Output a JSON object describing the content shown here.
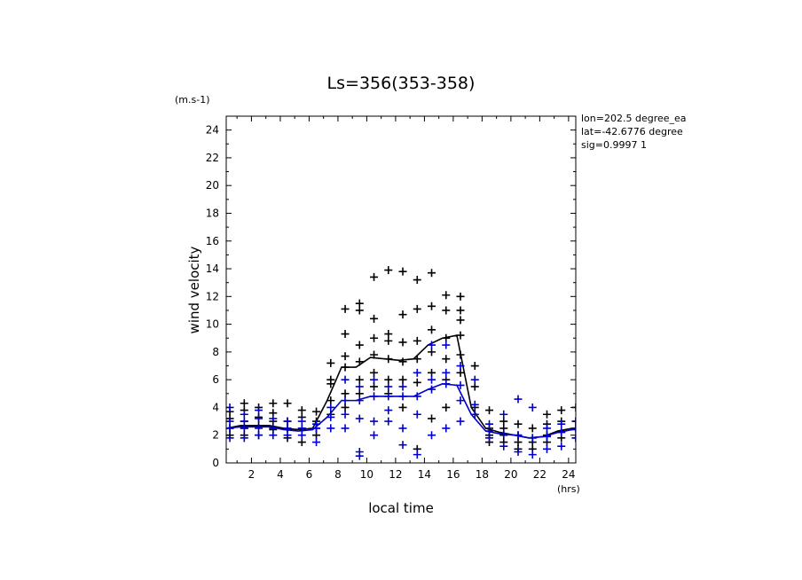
{
  "chart_data": {
    "type": "scatter",
    "title": "Ls=356(353-358)",
    "xlabel": "local time",
    "ylabel": "wind velocity",
    "x_unit": "(hrs)",
    "y_unit": "(m.s-1)",
    "xlim": [
      0.25,
      24.5
    ],
    "ylim": [
      0,
      25
    ],
    "x_ticks": [
      2,
      4,
      6,
      8,
      10,
      12,
      14,
      16,
      18,
      20,
      22,
      24
    ],
    "y_ticks": [
      0,
      2,
      4,
      6,
      8,
      10,
      12,
      14,
      16,
      18,
      20,
      22,
      24
    ],
    "info_lines": [
      "lon=202.5 degree_ea",
      "lat=-42.6776 degree",
      "sig=0.9997 1"
    ],
    "colors": {
      "black_series": "#000000",
      "blue_series": "#0000cc",
      "axis": "#000000"
    },
    "series": [
      {
        "color": "black",
        "mean_x": [
          0.25,
          1.25,
          2.25,
          3.25,
          4.25,
          5.25,
          6.25,
          7.25,
          8.25,
          9.25,
          10.25,
          11.25,
          12.25,
          13.25,
          14.25,
          15.25,
          16.25,
          17.25,
          18.25,
          19.25,
          20.25,
          21.25,
          22.25,
          23.25,
          24.25
        ],
        "mean_y": [
          2.5,
          2.7,
          2.7,
          2.7,
          2.5,
          2.4,
          2.5,
          4.5,
          6.9,
          6.9,
          7.6,
          7.5,
          7.4,
          7.5,
          8.5,
          9.0,
          9.2,
          4.0,
          2.5,
          2.2,
          2.0,
          1.8,
          1.9,
          2.3,
          2.5
        ],
        "points": [
          [
            0.5,
            2.5
          ],
          [
            0.5,
            3.2
          ],
          [
            0.5,
            2.0
          ],
          [
            0.5,
            3.7
          ],
          [
            1.5,
            2.5
          ],
          [
            1.5,
            3.0
          ],
          [
            1.5,
            3.8
          ],
          [
            1.5,
            4.3
          ],
          [
            1.5,
            2.0
          ],
          [
            2.5,
            2.7
          ],
          [
            2.5,
            3.3
          ],
          [
            2.5,
            4.0
          ],
          [
            2.5,
            2.0
          ],
          [
            3.5,
            3.0
          ],
          [
            3.5,
            3.6
          ],
          [
            3.5,
            4.3
          ],
          [
            3.5,
            2.4
          ],
          [
            4.5,
            2.5
          ],
          [
            4.5,
            3.0
          ],
          [
            4.5,
            4.3
          ],
          [
            4.5,
            1.8
          ],
          [
            5.5,
            2.5
          ],
          [
            5.5,
            3.3
          ],
          [
            5.5,
            3.8
          ],
          [
            5.5,
            1.5
          ],
          [
            6.5,
            2.5
          ],
          [
            6.5,
            3.0
          ],
          [
            6.5,
            3.7
          ],
          [
            6.5,
            2.0
          ],
          [
            7.5,
            4.5
          ],
          [
            7.5,
            5.7
          ],
          [
            7.5,
            7.2
          ],
          [
            7.5,
            6.0
          ],
          [
            7.5,
            3.5
          ],
          [
            8.5,
            6.9
          ],
          [
            8.5,
            9.3
          ],
          [
            8.5,
            11.1
          ],
          [
            8.5,
            7.7
          ],
          [
            8.5,
            5.0
          ],
          [
            8.5,
            4.0
          ],
          [
            9.5,
            11.5
          ],
          [
            9.5,
            11.0
          ],
          [
            9.5,
            8.5
          ],
          [
            9.5,
            7.3
          ],
          [
            9.5,
            6.0
          ],
          [
            9.5,
            5.0
          ],
          [
            10.5,
            13.4
          ],
          [
            10.5,
            10.4
          ],
          [
            10.5,
            9.0
          ],
          [
            10.5,
            7.8
          ],
          [
            10.5,
            6.5
          ],
          [
            10.5,
            5.5
          ],
          [
            11.5,
            13.9
          ],
          [
            11.5,
            9.3
          ],
          [
            11.5,
            8.8
          ],
          [
            11.5,
            7.5
          ],
          [
            11.5,
            6.0
          ],
          [
            11.5,
            5.0
          ],
          [
            12.5,
            13.8
          ],
          [
            12.5,
            10.7
          ],
          [
            12.5,
            8.7
          ],
          [
            12.5,
            7.3
          ],
          [
            12.5,
            6.0
          ],
          [
            12.5,
            4.0
          ],
          [
            13.5,
            13.2
          ],
          [
            13.5,
            11.1
          ],
          [
            13.5,
            8.8
          ],
          [
            13.5,
            7.5
          ],
          [
            13.5,
            5.8
          ],
          [
            13.5,
            1.0
          ],
          [
            14.5,
            13.7
          ],
          [
            14.5,
            11.3
          ],
          [
            14.5,
            9.6
          ],
          [
            14.5,
            8.0
          ],
          [
            14.5,
            6.5
          ],
          [
            14.5,
            3.2
          ],
          [
            15.5,
            12.1
          ],
          [
            15.5,
            11.0
          ],
          [
            15.5,
            9.0
          ],
          [
            15.5,
            7.5
          ],
          [
            15.5,
            6.0
          ],
          [
            15.5,
            4.0
          ],
          [
            16.5,
            12.0
          ],
          [
            16.5,
            11.0
          ],
          [
            16.5,
            10.3
          ],
          [
            16.5,
            9.2
          ],
          [
            16.5,
            7.8
          ],
          [
            16.5,
            6.5
          ],
          [
            17.5,
            7.0
          ],
          [
            17.5,
            5.5
          ],
          [
            17.5,
            4.0
          ],
          [
            17.5,
            3.5
          ],
          [
            18.5,
            2.5
          ],
          [
            18.5,
            3.8
          ],
          [
            18.5,
            2.0
          ],
          [
            18.5,
            1.5
          ],
          [
            19.5,
            2.5
          ],
          [
            19.5,
            3.0
          ],
          [
            19.5,
            1.5
          ],
          [
            19.5,
            2.0
          ],
          [
            20.5,
            2.0
          ],
          [
            20.5,
            2.8
          ],
          [
            20.5,
            1.5
          ],
          [
            20.5,
            1.0
          ],
          [
            21.5,
            1.8
          ],
          [
            21.5,
            2.5
          ],
          [
            21.5,
            1.0
          ],
          [
            21.5,
            1.5
          ],
          [
            22.5,
            2.0
          ],
          [
            22.5,
            3.5
          ],
          [
            22.5,
            2.8
          ],
          [
            22.5,
            1.5
          ],
          [
            23.5,
            2.3
          ],
          [
            23.5,
            3.8
          ],
          [
            23.5,
            3.0
          ],
          [
            23.5,
            1.8
          ],
          [
            24.5,
            2.5
          ],
          [
            24.5,
            3.0
          ],
          [
            24.5,
            4.0
          ],
          [
            24.5,
            1.8
          ]
        ]
      },
      {
        "color": "blue",
        "mean_x": [
          0.25,
          1.25,
          2.25,
          3.25,
          4.25,
          5.25,
          6.25,
          7.25,
          8.25,
          9.25,
          10.25,
          11.25,
          12.25,
          13.25,
          14.25,
          15.25,
          16.25,
          17.25,
          18.25,
          19.25,
          20.25,
          21.25,
          22.25,
          23.25,
          24.25
        ],
        "mean_y": [
          2.5,
          2.6,
          2.6,
          2.6,
          2.4,
          2.3,
          2.4,
          3.3,
          4.5,
          4.5,
          4.8,
          4.8,
          4.8,
          4.8,
          5.3,
          5.7,
          5.6,
          3.5,
          2.3,
          2.1,
          2.0,
          1.8,
          1.9,
          2.2,
          2.4
        ],
        "points": [
          [
            0.5,
            2.5
          ],
          [
            0.5,
            4.0
          ],
          [
            0.5,
            3.0
          ],
          [
            0.5,
            1.8
          ],
          [
            1.5,
            2.5
          ],
          [
            1.5,
            3.5
          ],
          [
            1.5,
            1.8
          ],
          [
            1.5,
            3.0
          ],
          [
            2.5,
            2.5
          ],
          [
            2.5,
            3.2
          ],
          [
            2.5,
            2.0
          ],
          [
            2.5,
            3.8
          ],
          [
            3.5,
            2.5
          ],
          [
            3.5,
            3.2
          ],
          [
            3.5,
            2.0
          ],
          [
            4.5,
            2.5
          ],
          [
            4.5,
            2.0
          ],
          [
            4.5,
            3.0
          ],
          [
            5.5,
            2.5
          ],
          [
            5.5,
            2.0
          ],
          [
            5.5,
            3.0
          ],
          [
            6.5,
            2.5
          ],
          [
            6.5,
            2.8
          ],
          [
            6.5,
            1.5
          ],
          [
            7.5,
            3.3
          ],
          [
            7.5,
            4.0
          ],
          [
            7.5,
            2.5
          ],
          [
            8.5,
            4.5
          ],
          [
            8.5,
            3.5
          ],
          [
            8.5,
            6.0
          ],
          [
            8.5,
            2.5
          ],
          [
            9.5,
            4.5
          ],
          [
            9.5,
            5.5
          ],
          [
            9.5,
            0.5
          ],
          [
            9.5,
            0.8
          ],
          [
            9.5,
            3.2
          ],
          [
            10.5,
            4.8
          ],
          [
            10.5,
            6.0
          ],
          [
            10.5,
            3.0
          ],
          [
            10.5,
            2.0
          ],
          [
            11.5,
            4.8
          ],
          [
            11.5,
            5.5
          ],
          [
            11.5,
            3.8
          ],
          [
            11.5,
            3.0
          ],
          [
            12.5,
            4.8
          ],
          [
            12.5,
            5.5
          ],
          [
            12.5,
            2.5
          ],
          [
            12.5,
            1.3
          ],
          [
            13.5,
            4.8
          ],
          [
            13.5,
            6.5
          ],
          [
            13.5,
            3.5
          ],
          [
            13.5,
            0.6
          ],
          [
            14.5,
            5.3
          ],
          [
            14.5,
            8.5
          ],
          [
            14.5,
            6.0
          ],
          [
            14.5,
            2.0
          ],
          [
            15.5,
            5.7
          ],
          [
            15.5,
            8.5
          ],
          [
            15.5,
            6.5
          ],
          [
            15.5,
            2.5
          ],
          [
            16.5,
            5.6
          ],
          [
            16.5,
            7.0
          ],
          [
            16.5,
            4.5
          ],
          [
            16.5,
            3.0
          ],
          [
            17.5,
            3.5
          ],
          [
            17.5,
            6.0
          ],
          [
            17.5,
            4.2
          ],
          [
            18.5,
            2.3
          ],
          [
            18.5,
            2.8
          ],
          [
            18.5,
            1.8
          ],
          [
            19.5,
            2.1
          ],
          [
            19.5,
            3.5
          ],
          [
            19.5,
            1.2
          ],
          [
            20.5,
            2.0
          ],
          [
            20.5,
            4.6
          ],
          [
            20.5,
            0.8
          ],
          [
            21.5,
            1.8
          ],
          [
            21.5,
            4.0
          ],
          [
            21.5,
            0.6
          ],
          [
            22.5,
            1.9
          ],
          [
            22.5,
            2.5
          ],
          [
            22.5,
            1.0
          ],
          [
            23.5,
            2.2
          ],
          [
            23.5,
            2.8
          ],
          [
            23.5,
            1.2
          ],
          [
            24.5,
            2.4
          ],
          [
            24.5,
            3.0
          ],
          [
            24.5,
            1.8
          ]
        ]
      }
    ]
  }
}
